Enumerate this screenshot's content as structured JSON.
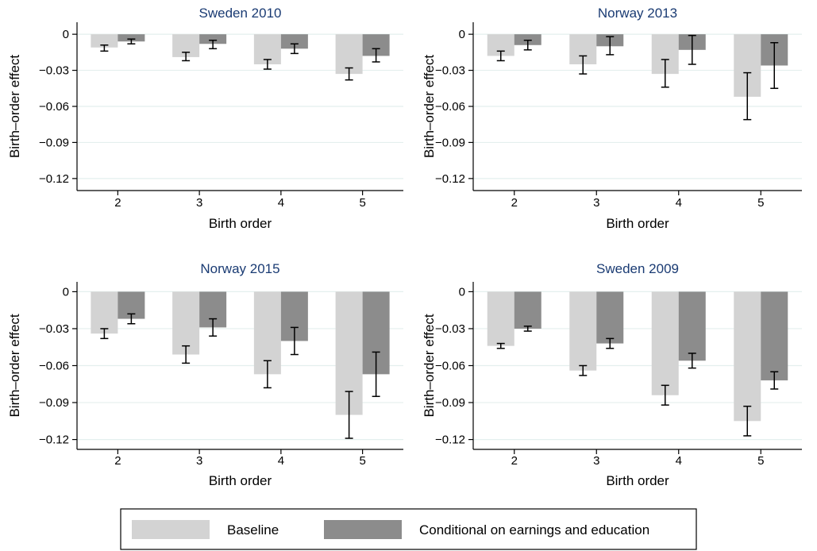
{
  "colors": {
    "baseline": "#d3d3d3",
    "conditional": "#8c8c8c",
    "error_bar": "#000000",
    "grid": "#e4efee",
    "title": "#1a3b73"
  },
  "legend": {
    "placement": "bottom-center",
    "items": [
      "Baseline",
      "Conditional on earnings and education"
    ]
  },
  "chart_data": [
    {
      "type": "bar",
      "title": "Sweden 2010",
      "xlabel": "Birth order",
      "ylabel": "Birth–order effect",
      "categories": [
        "2",
        "3",
        "4",
        "5"
      ],
      "ylim": [
        -0.13,
        0.01
      ],
      "yticks": [
        0,
        -0.03,
        -0.06,
        -0.09,
        -0.12
      ],
      "ytick_labels": [
        "0",
        "−0.03",
        "−0.06",
        "−0.09",
        "−0.12"
      ],
      "grid": true,
      "series": [
        {
          "name": "Baseline",
          "values": [
            -0.011,
            -0.019,
            -0.025,
            -0.033
          ],
          "err_low": [
            -0.014,
            -0.022,
            -0.029,
            -0.038
          ],
          "err_high": [
            -0.009,
            -0.015,
            -0.021,
            -0.028
          ]
        },
        {
          "name": "Conditional on earnings and education",
          "values": [
            -0.006,
            -0.008,
            -0.012,
            -0.018
          ],
          "err_low": [
            -0.008,
            -0.012,
            -0.016,
            -0.023
          ],
          "err_high": [
            -0.004,
            -0.005,
            -0.008,
            -0.012
          ]
        }
      ]
    },
    {
      "type": "bar",
      "title": "Norway 2013",
      "xlabel": "Birth order",
      "ylabel": "Birth–order effect",
      "categories": [
        "2",
        "3",
        "4",
        "5"
      ],
      "ylim": [
        -0.13,
        0.01
      ],
      "yticks": [
        0,
        -0.03,
        -0.06,
        -0.09,
        -0.12
      ],
      "ytick_labels": [
        "0",
        "−0.03",
        "−0.06",
        "−0.09",
        "−0.12"
      ],
      "grid": true,
      "series": [
        {
          "name": "Baseline",
          "values": [
            -0.018,
            -0.025,
            -0.033,
            -0.052
          ],
          "err_low": [
            -0.022,
            -0.033,
            -0.044,
            -0.071
          ],
          "err_high": [
            -0.014,
            -0.018,
            -0.021,
            -0.032
          ]
        },
        {
          "name": "Conditional on earnings and education",
          "values": [
            -0.009,
            -0.01,
            -0.013,
            -0.026
          ],
          "err_low": [
            -0.013,
            -0.017,
            -0.025,
            -0.045
          ],
          "err_high": [
            -0.005,
            -0.002,
            -0.001,
            -0.007
          ]
        }
      ]
    },
    {
      "type": "bar",
      "title": "Norway 2015",
      "xlabel": "Birth order",
      "ylabel": "Birth–order effect",
      "categories": [
        "2",
        "3",
        "4",
        "5"
      ],
      "ylim": [
        -0.128,
        0.008
      ],
      "yticks": [
        0,
        -0.03,
        -0.06,
        -0.09,
        -0.12
      ],
      "ytick_labels": [
        "0",
        "−0.03",
        "−0.06",
        "−0.09",
        "−0.12"
      ],
      "grid": true,
      "series": [
        {
          "name": "Baseline",
          "values": [
            -0.034,
            -0.051,
            -0.067,
            -0.1
          ],
          "err_low": [
            -0.038,
            -0.058,
            -0.078,
            -0.119
          ],
          "err_high": [
            -0.03,
            -0.044,
            -0.056,
            -0.081
          ]
        },
        {
          "name": "Conditional on earnings and education",
          "values": [
            -0.022,
            -0.029,
            -0.04,
            -0.067
          ],
          "err_low": [
            -0.026,
            -0.036,
            -0.051,
            -0.085
          ],
          "err_high": [
            -0.018,
            -0.022,
            -0.029,
            -0.049
          ]
        }
      ]
    },
    {
      "type": "bar",
      "title": "Sweden 2009",
      "xlabel": "Birth order",
      "ylabel": "Birth–order effect",
      "categories": [
        "2",
        "3",
        "4",
        "5"
      ],
      "ylim": [
        -0.128,
        0.008
      ],
      "yticks": [
        0,
        -0.03,
        -0.06,
        -0.09,
        -0.12
      ],
      "ytick_labels": [
        "0",
        "−0.03",
        "−0.06",
        "−0.09",
        "−0.12"
      ],
      "grid": true,
      "series": [
        {
          "name": "Baseline",
          "values": [
            -0.044,
            -0.064,
            -0.084,
            -0.105
          ],
          "err_low": [
            -0.046,
            -0.068,
            -0.092,
            -0.117
          ],
          "err_high": [
            -0.042,
            -0.06,
            -0.076,
            -0.093
          ]
        },
        {
          "name": "Conditional on earnings and education",
          "values": [
            -0.03,
            -0.042,
            -0.056,
            -0.072
          ],
          "err_low": [
            -0.032,
            -0.046,
            -0.062,
            -0.079
          ],
          "err_high": [
            -0.028,
            -0.038,
            -0.05,
            -0.065
          ]
        }
      ]
    }
  ]
}
